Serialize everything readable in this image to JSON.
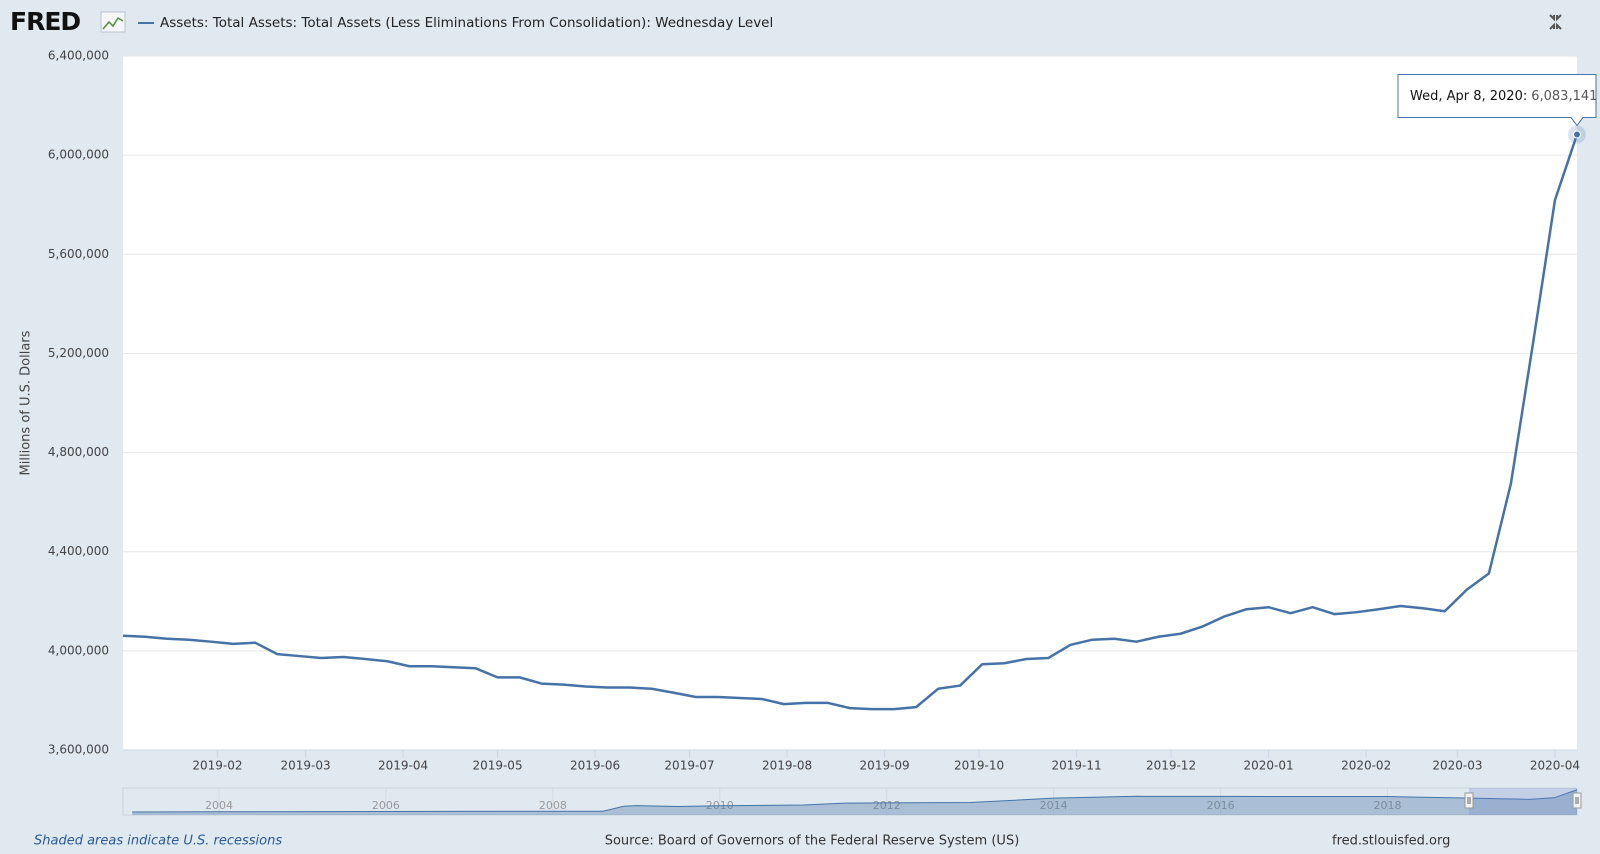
{
  "header": {
    "logo": "FRED"
  },
  "chart_data": {
    "type": "line",
    "ylabel": "Millions of U.S. Dollars",
    "x": [
      "2019-01-02",
      "2019-01-09",
      "2019-01-16",
      "2019-01-23",
      "2019-01-30",
      "2019-02-06",
      "2019-02-13",
      "2019-02-20",
      "2019-02-27",
      "2019-03-06",
      "2019-03-13",
      "2019-03-20",
      "2019-03-27",
      "2019-04-03",
      "2019-04-10",
      "2019-04-17",
      "2019-04-24",
      "2019-05-01",
      "2019-05-08",
      "2019-05-15",
      "2019-05-22",
      "2019-05-29",
      "2019-06-05",
      "2019-06-12",
      "2019-06-19",
      "2019-06-26",
      "2019-07-03",
      "2019-07-10",
      "2019-07-17",
      "2019-07-24",
      "2019-07-31",
      "2019-08-07",
      "2019-08-14",
      "2019-08-21",
      "2019-08-28",
      "2019-09-04",
      "2019-09-11",
      "2019-09-18",
      "2019-09-25",
      "2019-10-02",
      "2019-10-09",
      "2019-10-16",
      "2019-10-23",
      "2019-10-30",
      "2019-11-06",
      "2019-11-13",
      "2019-11-20",
      "2019-11-27",
      "2019-12-04",
      "2019-12-11",
      "2019-12-18",
      "2019-12-25",
      "2020-01-01",
      "2020-01-08",
      "2020-01-15",
      "2020-01-22",
      "2020-01-29",
      "2020-02-05",
      "2020-02-12",
      "2020-02-19",
      "2020-02-26",
      "2020-03-04",
      "2020-03-11",
      "2020-03-18",
      "2020-03-25",
      "2020-04-01",
      "2020-04-08"
    ],
    "series": [
      {
        "name": "Assets: Total Assets: Total Assets (Less Eliminations From Consolidation): Wednesday Level",
        "color": "#4572a7",
        "values": [
          4061000,
          4057000,
          4049000,
          4045000,
          4037000,
          4028000,
          4033000,
          3987000,
          3979000,
          3971000,
          3975000,
          3967000,
          3958000,
          3938000,
          3938000,
          3934000,
          3930000,
          3893000,
          3893000,
          3868000,
          3864000,
          3856000,
          3852000,
          3852000,
          3847000,
          3831000,
          3814000,
          3814000,
          3810000,
          3806000,
          3785000,
          3790000,
          3790000,
          3769000,
          3765000,
          3765000,
          3773000,
          3847000,
          3860000,
          3946000,
          3950000,
          3967000,
          3971000,
          4024000,
          4045000,
          4049000,
          4037000,
          4057000,
          4069000,
          4098000,
          4139000,
          4168000,
          4176000,
          4152000,
          4176000,
          4148000,
          4156000,
          4168000,
          4181000,
          4172000,
          4160000,
          4247000,
          4312000,
          4675000,
          5239000,
          5819000,
          6083141
        ]
      }
    ],
    "xlim": [
      "2019-01-02",
      "2020-04-08"
    ],
    "xticks": [
      {
        "value": "2019-02-01",
        "label": "2019-02"
      },
      {
        "value": "2019-03-01",
        "label": "2019-03"
      },
      {
        "value": "2019-04-01",
        "label": "2019-04"
      },
      {
        "value": "2019-05-01",
        "label": "2019-05"
      },
      {
        "value": "2019-06-01",
        "label": "2019-06"
      },
      {
        "value": "2019-07-01",
        "label": "2019-07"
      },
      {
        "value": "2019-08-01",
        "label": "2019-08"
      },
      {
        "value": "2019-09-01",
        "label": "2019-09"
      },
      {
        "value": "2019-10-01",
        "label": "2019-10"
      },
      {
        "value": "2019-11-01",
        "label": "2019-11"
      },
      {
        "value": "2019-12-01",
        "label": "2019-12"
      },
      {
        "value": "2020-01-01",
        "label": "2020-01"
      },
      {
        "value": "2020-02-01",
        "label": "2020-02"
      },
      {
        "value": "2020-03-01",
        "label": "2020-03"
      },
      {
        "value": "2020-04-01",
        "label": "2020-04"
      }
    ],
    "ylim": [
      3600000,
      6400000
    ],
    "yticks": [
      {
        "value": 3600000,
        "label": "3,600,000"
      },
      {
        "value": 4000000,
        "label": "4,000,000"
      },
      {
        "value": 4400000,
        "label": "4,400,000"
      },
      {
        "value": 4800000,
        "label": "4,800,000"
      },
      {
        "value": 5200000,
        "label": "5,200,000"
      },
      {
        "value": 5600000,
        "label": "5,600,000"
      },
      {
        "value": 6000000,
        "label": "6,000,000"
      },
      {
        "value": 6400000,
        "label": "6,400,000"
      }
    ],
    "grid": true,
    "tooltip": {
      "x_label": "Wed, Apr 8, 2020:",
      "value_label": "6,083,141"
    },
    "navigator": {
      "x": [
        2002.96,
        2004,
        2006,
        2007.5,
        2008.6,
        2008.85,
        2009,
        2009.5,
        2010,
        2011,
        2011.5,
        2012,
        2013,
        2014,
        2015,
        2016,
        2017,
        2018,
        2019,
        2019.7,
        2020,
        2020.27
      ],
      "values": [
        720000,
        770000,
        850000,
        890000,
        900000,
        2100000,
        2250000,
        2050000,
        2230000,
        2420000,
        2870000,
        2930000,
        3000000,
        4050000,
        4500000,
        4490000,
        4450000,
        4450000,
        4060000,
        3770000,
        4170000,
        6083141
      ],
      "xlim": [
        2002.85,
        2020.27
      ],
      "ylim": [
        0,
        6500000
      ],
      "xticks": [
        2004,
        2006,
        2008,
        2010,
        2012,
        2014,
        2016,
        2018
      ],
      "color": "#4572a7"
    }
  },
  "footer": {
    "note": "Shaded areas indicate U.S. recessions",
    "source": "Source: Board of Governors of the Federal Reserve System (US)",
    "url": "fred.stlouisfed.org"
  }
}
